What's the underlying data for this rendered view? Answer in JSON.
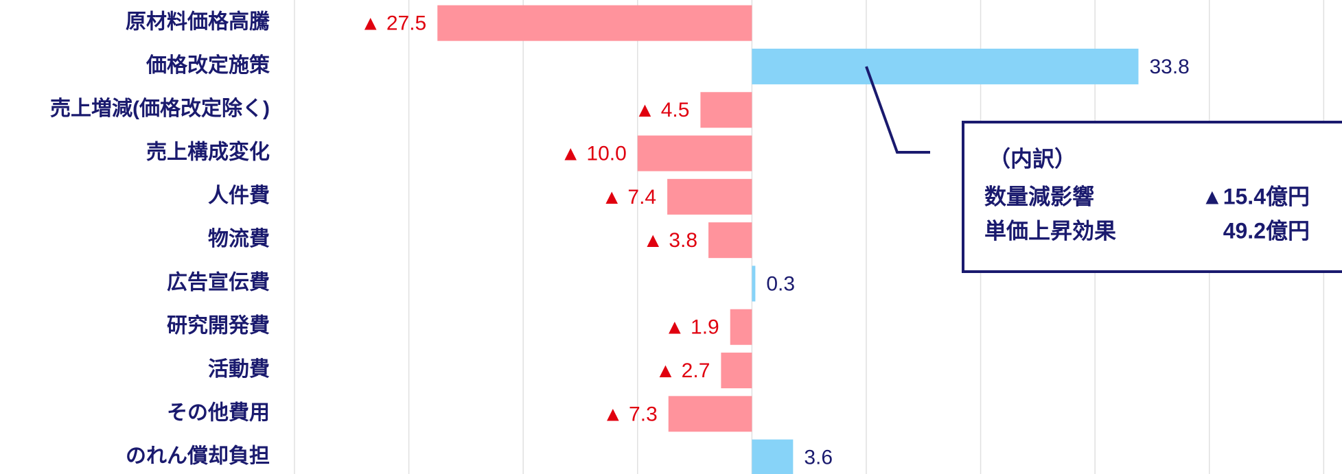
{
  "chart_data": {
    "type": "barh",
    "categories": [
      "原材料価格高騰",
      "価格改定施策",
      "売上増減(価格改定除く)",
      "売上構成変化",
      "人件費",
      "物流費",
      "広告宣伝費",
      "研究開発費",
      "活動費",
      "その他費用",
      "のれん償却負担"
    ],
    "values": [
      -27.5,
      33.8,
      -4.5,
      -10.0,
      -7.4,
      -3.8,
      0.3,
      -1.9,
      -2.7,
      -7.3,
      3.6
    ],
    "value_labels": [
      "▲ 27.5",
      "33.8",
      "▲ 4.5",
      "▲ 10.0",
      "▲ 7.4",
      "▲ 3.8",
      "0.3",
      "▲ 1.9",
      "▲ 2.7",
      "▲ 7.3",
      "3.6"
    ],
    "colors": {
      "positive": "#87d3f8",
      "negative": "#ff939c"
    },
    "label_colors": {
      "positive": "#1a1a6e",
      "negative": "#e0000f"
    },
    "xlim": [
      -40,
      51.6
    ],
    "xticks": [
      -40,
      -30,
      -20,
      -10,
      0,
      10,
      20,
      30,
      40,
      50
    ],
    "grid": true,
    "annotation": {
      "title": "（内訳）",
      "rows": [
        [
          "数量減影響",
          "▲15.4億円"
        ],
        [
          "単価上昇効果",
          "49.2億円"
        ]
      ]
    }
  }
}
